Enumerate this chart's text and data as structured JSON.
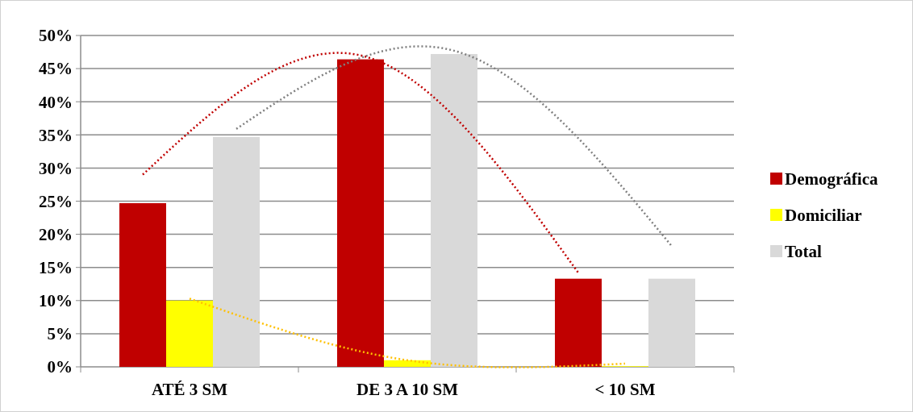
{
  "chart_data": {
    "type": "bar",
    "categories": [
      "ATÉ 3 SM",
      "DE 3 A 10 SM",
      "< 10 SM"
    ],
    "series": [
      {
        "name": "Demográfica",
        "color": "#c00000",
        "values": [
          24.7,
          46.4,
          13.3
        ]
      },
      {
        "name": "Domiciliar",
        "color": "#ffff00",
        "values": [
          10,
          1,
          0.1
        ]
      },
      {
        "name": "Total",
        "color": "#d9d9d9",
        "values": [
          34.7,
          47.2,
          13.3
        ]
      },
      {
        "type": "line",
        "line_style": "dotted",
        "color": "#c00000",
        "values": [
          29,
          47,
          14.2
        ]
      },
      {
        "type": "line",
        "line_style": "dotted",
        "color": "#ffc000",
        "values": [
          10.3,
          1,
          0.5
        ]
      },
      {
        "type": "line",
        "line_style": "dotted",
        "color": "#808080",
        "values": [
          35.9,
          47.7,
          18.2
        ]
      }
    ],
    "ylim": [
      0,
      50
    ],
    "yticks": [
      {
        "value": 0,
        "label": "0%"
      },
      {
        "value": 5,
        "label": "5%"
      },
      {
        "value": 10,
        "label": "10%"
      },
      {
        "value": 15,
        "label": "15%"
      },
      {
        "value": 20,
        "label": "20%"
      },
      {
        "value": 25,
        "label": "25%"
      },
      {
        "value": 30,
        "label": "30%"
      },
      {
        "value": 35,
        "label": "35%"
      },
      {
        "value": 40,
        "label": "40%"
      },
      {
        "value": 45,
        "label": "45%"
      },
      {
        "value": 50,
        "label": "50%"
      }
    ],
    "grid": "y",
    "legend": "right"
  }
}
